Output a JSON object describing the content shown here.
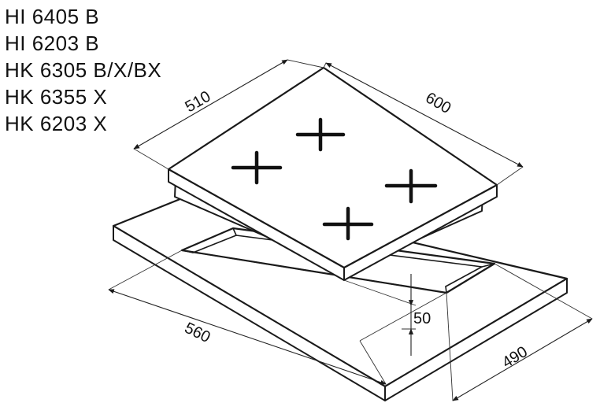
{
  "models": [
    "HI 6405 B",
    "HI 6203 B",
    "HK 6305 B/X/BX",
    "HK 6355 X",
    "HK 6203 X"
  ],
  "dimensions": {
    "hob_depth": "510",
    "hob_width": "600",
    "cutout_width": "560",
    "cutout_depth": "490",
    "height": "50"
  }
}
